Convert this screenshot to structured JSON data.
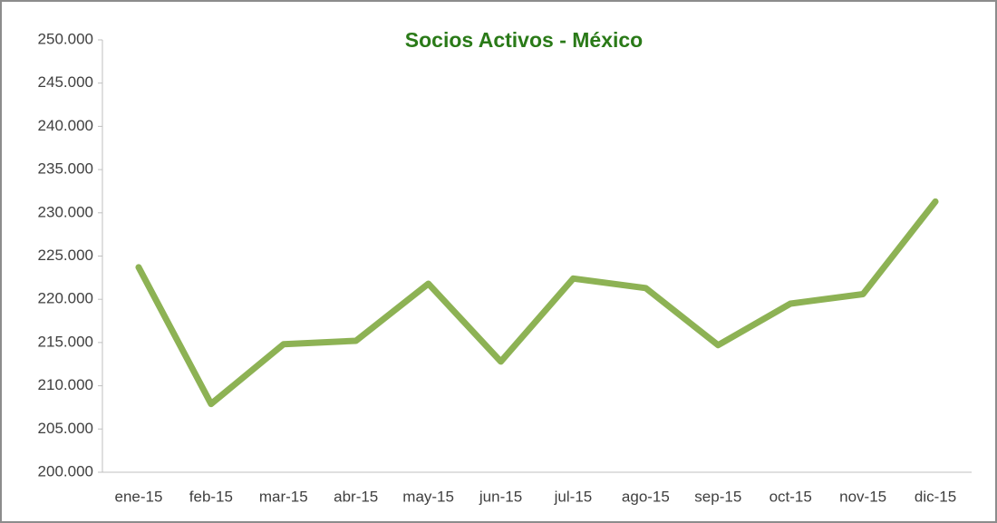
{
  "chart_data": {
    "type": "line",
    "title": "Socios Activos - México",
    "categories": [
      "ene-15",
      "feb-15",
      "mar-15",
      "abr-15",
      "may-15",
      "jun-15",
      "jul-15",
      "ago-15",
      "sep-15",
      "oct-15",
      "nov-15",
      "dic-15"
    ],
    "series": [
      {
        "name": "Socios Activos",
        "color": "#8db254",
        "values": [
          223700,
          207900,
          214800,
          215200,
          221800,
          212800,
          222400,
          221300,
          214700,
          219500,
          220600,
          231300
        ]
      }
    ],
    "ylim": [
      200000,
      250000
    ],
    "yticks": [
      {
        "value": 200000,
        "label": "200.000"
      },
      {
        "value": 205000,
        "label": "205.000"
      },
      {
        "value": 210000,
        "label": "210.000"
      },
      {
        "value": 215000,
        "label": "215.000"
      },
      {
        "value": 220000,
        "label": "220.000"
      },
      {
        "value": 225000,
        "label": "225.000"
      },
      {
        "value": 230000,
        "label": "230.000"
      },
      {
        "value": 235000,
        "label": "235.000"
      },
      {
        "value": 240000,
        "label": "240.000"
      },
      {
        "value": 245000,
        "label": "245.000"
      },
      {
        "value": 250000,
        "label": "250.000"
      }
    ],
    "grid": false
  }
}
